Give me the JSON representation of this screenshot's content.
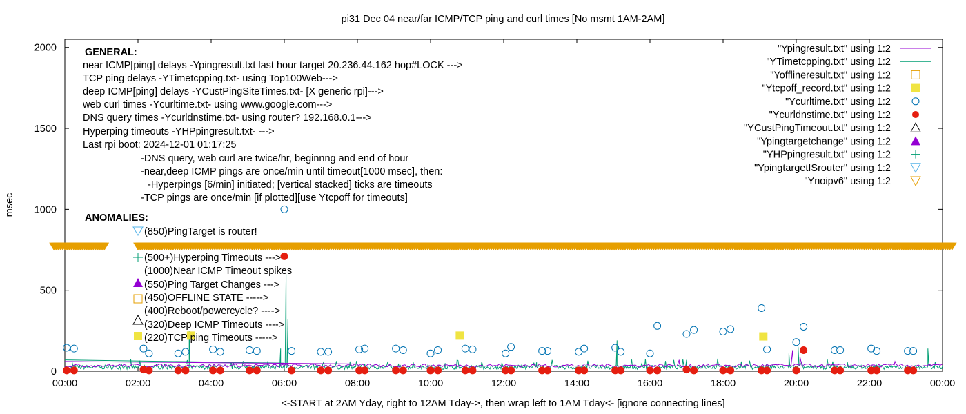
{
  "chart_data": {
    "type": "line",
    "title": "pi31 Dec 04  near/far ICMP/TCP ping and curl times [No msmt 1AM-2AM]",
    "xlabel": "<-START at 2AM Yday, right to 12AM Tday->, then wrap left to 1AM Tday<- [ignore connecting lines]",
    "ylabel": "msec",
    "xlim": [
      0,
      24
    ],
    "ylim": [
      0,
      2050
    ],
    "x_ticks": [
      "00:00",
      "02:00",
      "04:00",
      "06:00",
      "08:00",
      "10:00",
      "12:00",
      "14:00",
      "16:00",
      "18:00",
      "20:00",
      "22:00",
      "00:00"
    ],
    "y_ticks": [
      0,
      500,
      1000,
      1500,
      2000
    ],
    "grid": false,
    "legend_placement": "top-right",
    "legend": [
      {
        "name": "\"Ypingresult.txt\" using 1:2",
        "symbol": "line",
        "color": "#9400d3"
      },
      {
        "name": "\"YTimetcpping.txt\" using 1:2",
        "symbol": "line",
        "color": "#009e73"
      },
      {
        "name": "\"Yofflineresult.txt\" using 1:2",
        "symbol": "open-square",
        "color": "#e69f00"
      },
      {
        "name": "\"Ytcpoff_record.txt\" using 1:2",
        "symbol": "filled-square",
        "color": "#f0e442"
      },
      {
        "name": "\"Ycurltime.txt\" using 1:2",
        "symbol": "open-circle",
        "color": "#0072b2"
      },
      {
        "name": "\"Ycurldnstime.txt\" using 1:2",
        "symbol": "filled-circle",
        "color": "#e51e10"
      },
      {
        "name": "\"YCustPingTimeout.txt\" using 1:2",
        "symbol": "open-triangle",
        "color": "#000000"
      },
      {
        "name": "\"Ypingtargetchange\" using 1:2",
        "symbol": "filled-triangle",
        "color": "#9400d3"
      },
      {
        "name": "\"YHPpingresult.txt\" using 1:2",
        "symbol": "plus",
        "color": "#009e73"
      },
      {
        "name": "\"YpingtargetISrouter\" using 1:2",
        "symbol": "open-inv-triangle",
        "color": "#56b4e9"
      },
      {
        "name": "\"Ynoipv6\" using 1:2",
        "symbol": "open-inv-triangle",
        "color": "#e69f00"
      }
    ],
    "annotations": [
      "GENERAL:",
      "near ICMP[ping] delays -Ypingresult.txt last hour target 20.236.44.162 hop#LOCK --->",
      "TCP ping delays -YTimetcpping.txt- using Top100Web--->",
      "deep ICMP[ping] delays -YCustPingSiteTimes.txt- [X generic rpi]--->",
      "web curl times -Ycurltime.txt- using www.google.com--->",
      "DNS query times -Ycurldnstime.txt- using router? 192.168.0.1--->",
      "Hyperping timeouts -YHPpingresult.txt- --->",
      "Last rpi boot: 2024-12-01 01:17:25",
      "-DNS query, web curl are twice/hr, beginnng and end of hour",
      "-near,deep ICMP pings are once/min until timeout[1000 msec], then:",
      "-Hyperpings [6/min] initiated; [vertical stacked] ticks are timeouts",
      "-TCP pings are once/min [if plotted][use Ytcpoff for timeouts]",
      "ANOMALIES:",
      "(850)PingTarget is router!",
      "(500+)Hyperping Timeouts --->",
      "(1000)Near ICMP Timeout spikes",
      "(550)Ping Target Changes --->",
      "(450)OFFLINE STATE ----->",
      "(400)Reboot/powercycle? ---->",
      "(320)Deep ICMP Timeouts ---->",
      "(220)TCP ping Timeouts ----->"
    ],
    "series": {
      "curltime": [
        [
          0.05,
          145
        ],
        [
          0.25,
          140
        ],
        [
          2.15,
          140
        ],
        [
          2.3,
          110
        ],
        [
          3.1,
          110
        ],
        [
          3.3,
          120
        ],
        [
          4.05,
          135
        ],
        [
          4.25,
          120
        ],
        [
          5.05,
          130
        ],
        [
          5.25,
          125
        ],
        [
          6.0,
          1000
        ],
        [
          6.2,
          125
        ],
        [
          7.0,
          120
        ],
        [
          7.2,
          120
        ],
        [
          8.05,
          135
        ],
        [
          8.2,
          140
        ],
        [
          9.05,
          140
        ],
        [
          9.25,
          130
        ],
        [
          10.0,
          110
        ],
        [
          10.2,
          130
        ],
        [
          10.95,
          140
        ],
        [
          11.15,
          135
        ],
        [
          12.05,
          110
        ],
        [
          12.2,
          150
        ],
        [
          13.05,
          125
        ],
        [
          13.2,
          125
        ],
        [
          14.05,
          120
        ],
        [
          14.2,
          140
        ],
        [
          15.05,
          145
        ],
        [
          15.2,
          120
        ],
        [
          16.0,
          110
        ],
        [
          16.2,
          280
        ],
        [
          17.0,
          230
        ],
        [
          17.2,
          255
        ],
        [
          18.0,
          245
        ],
        [
          18.2,
          260
        ],
        [
          19.05,
          390
        ],
        [
          19.2,
          135
        ],
        [
          20.0,
          180
        ],
        [
          20.2,
          275
        ],
        [
          21.05,
          130
        ],
        [
          21.2,
          130
        ],
        [
          22.05,
          140
        ],
        [
          22.2,
          125
        ],
        [
          23.05,
          125
        ],
        [
          23.2,
          125
        ]
      ],
      "curldnstime": [
        [
          0.05,
          5
        ],
        [
          0.25,
          5
        ],
        [
          2.15,
          10
        ],
        [
          2.3,
          5
        ],
        [
          3.1,
          5
        ],
        [
          3.3,
          5
        ],
        [
          4.05,
          5
        ],
        [
          4.25,
          5
        ],
        [
          5.05,
          5
        ],
        [
          5.25,
          5
        ],
        [
          6.0,
          710
        ],
        [
          6.2,
          5
        ],
        [
          7.0,
          5
        ],
        [
          7.2,
          5
        ],
        [
          8.05,
          5
        ],
        [
          8.2,
          5
        ],
        [
          9.05,
          5
        ],
        [
          9.25,
          5
        ],
        [
          10.0,
          5
        ],
        [
          10.2,
          5
        ],
        [
          10.95,
          5
        ],
        [
          11.15,
          5
        ],
        [
          12.05,
          5
        ],
        [
          12.2,
          5
        ],
        [
          13.05,
          5
        ],
        [
          13.2,
          5
        ],
        [
          14.05,
          5
        ],
        [
          14.2,
          5
        ],
        [
          15.05,
          5
        ],
        [
          15.2,
          5
        ],
        [
          16.0,
          5
        ],
        [
          16.2,
          5
        ],
        [
          17.0,
          10
        ],
        [
          17.2,
          5
        ],
        [
          18.0,
          5
        ],
        [
          18.2,
          5
        ],
        [
          19.05,
          5
        ],
        [
          19.2,
          5
        ],
        [
          20.0,
          5
        ],
        [
          20.2,
          130
        ],
        [
          21.05,
          5
        ],
        [
          21.2,
          5
        ],
        [
          22.05,
          5
        ],
        [
          22.2,
          5
        ],
        [
          23.05,
          5
        ],
        [
          23.2,
          5
        ]
      ],
      "tcpoff_record": [
        [
          3.45,
          220
        ],
        [
          10.8,
          220
        ],
        [
          19.1,
          215
        ]
      ],
      "tcp_spikes": [
        [
          0.2,
          55
        ],
        [
          2.5,
          45
        ],
        [
          3.4,
          250
        ],
        [
          5.9,
          140
        ],
        [
          6.05,
          600
        ],
        [
          6.1,
          320
        ],
        [
          7.8,
          60
        ],
        [
          8.6,
          45
        ],
        [
          10.4,
          50
        ],
        [
          12.9,
          55
        ],
        [
          15.1,
          190
        ],
        [
          17.0,
          70
        ],
        [
          18.5,
          60
        ],
        [
          19.8,
          110
        ],
        [
          20.05,
          150
        ],
        [
          21.4,
          55
        ],
        [
          23.6,
          140
        ]
      ],
      "ping_bumps": [
        [
          16.8,
          70
        ],
        [
          19.9,
          130
        ],
        [
          20.1,
          90
        ],
        [
          22.7,
          60
        ]
      ],
      "noipv6_band_y": 775,
      "noipv6_gaps": [
        [
          1.1,
          2.0
        ]
      ]
    }
  }
}
